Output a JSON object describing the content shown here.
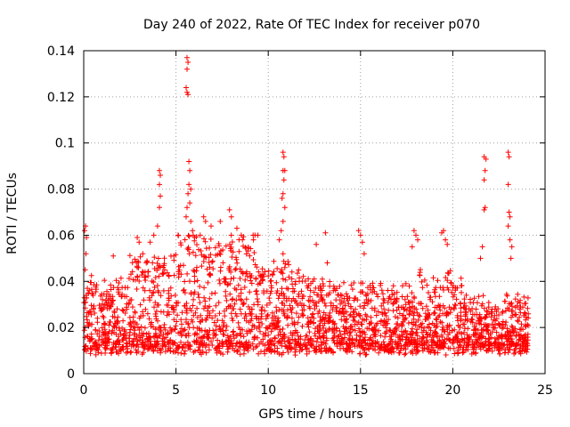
{
  "chart_data": {
    "type": "scatter",
    "title": "Day 240 of 2022, Rate Of TEC Index for receiver p070",
    "xlabel": "GPS time / hours",
    "ylabel": "ROTI / TECUs",
    "xlim": [
      0,
      25
    ],
    "ylim": [
      0,
      0.14
    ],
    "xticks": [
      0,
      5,
      10,
      15,
      20,
      25
    ],
    "xtick_labels": [
      "0",
      "5",
      "10",
      "15",
      "20",
      "25"
    ],
    "yticks": [
      0,
      0.02,
      0.04,
      0.06,
      0.08,
      0.1,
      0.12,
      0.14
    ],
    "ytick_labels": [
      "0",
      "0.02",
      "0.04",
      "0.06",
      "0.08",
      "0.1",
      "0.12",
      "0.14"
    ],
    "grid": true,
    "marker": "+",
    "color": "#ff0000",
    "series": [
      {
        "name": "ROTI",
        "points": [
          [
            0.05,
            0.062
          ],
          [
            0.1,
            0.064
          ],
          [
            0.15,
            0.059
          ],
          [
            0.12,
            0.052
          ],
          [
            0.08,
            0.045
          ],
          [
            0.2,
            0.037
          ],
          [
            0.3,
            0.036
          ],
          [
            0.25,
            0.035
          ],
          [
            1.6,
            0.051
          ],
          [
            2.9,
            0.059
          ],
          [
            3.0,
            0.057
          ],
          [
            3.2,
            0.052
          ],
          [
            3.6,
            0.057
          ],
          [
            3.8,
            0.06
          ],
          [
            4.1,
            0.088
          ],
          [
            4.15,
            0.086
          ],
          [
            4.1,
            0.082
          ],
          [
            4.15,
            0.077
          ],
          [
            4.1,
            0.072
          ],
          [
            4.0,
            0.064
          ],
          [
            5.6,
            0.137
          ],
          [
            5.65,
            0.135
          ],
          [
            5.6,
            0.132
          ],
          [
            5.55,
            0.124
          ],
          [
            5.6,
            0.122
          ],
          [
            5.65,
            0.121
          ],
          [
            5.7,
            0.092
          ],
          [
            5.75,
            0.088
          ],
          [
            5.7,
            0.082
          ],
          [
            5.8,
            0.08
          ],
          [
            5.65,
            0.078
          ],
          [
            5.75,
            0.074
          ],
          [
            5.6,
            0.072
          ],
          [
            5.55,
            0.068
          ],
          [
            5.8,
            0.066
          ],
          [
            5.9,
            0.062
          ],
          [
            6.5,
            0.068
          ],
          [
            6.6,
            0.066
          ],
          [
            6.9,
            0.064
          ],
          [
            7.4,
            0.066
          ],
          [
            7.9,
            0.071
          ],
          [
            8.0,
            0.068
          ],
          [
            8.3,
            0.063
          ],
          [
            8.6,
            0.058
          ],
          [
            9.2,
            0.058
          ],
          [
            10.8,
            0.096
          ],
          [
            10.85,
            0.094
          ],
          [
            10.8,
            0.088
          ],
          [
            10.9,
            0.088
          ],
          [
            10.85,
            0.084
          ],
          [
            10.8,
            0.078
          ],
          [
            10.75,
            0.076
          ],
          [
            10.9,
            0.072
          ],
          [
            10.8,
            0.066
          ],
          [
            10.7,
            0.062
          ],
          [
            10.6,
            0.058
          ],
          [
            10.8,
            0.052
          ],
          [
            10.9,
            0.046
          ],
          [
            12.6,
            0.056
          ],
          [
            13.1,
            0.061
          ],
          [
            13.2,
            0.048
          ],
          [
            14.9,
            0.062
          ],
          [
            15.0,
            0.06
          ],
          [
            15.1,
            0.057
          ],
          [
            15.2,
            0.052
          ],
          [
            17.9,
            0.062
          ],
          [
            18.0,
            0.06
          ],
          [
            18.1,
            0.058
          ],
          [
            17.8,
            0.055
          ],
          [
            19.4,
            0.061
          ],
          [
            19.5,
            0.062
          ],
          [
            19.6,
            0.058
          ],
          [
            19.7,
            0.056
          ],
          [
            21.7,
            0.094
          ],
          [
            21.8,
            0.093
          ],
          [
            21.75,
            0.088
          ],
          [
            21.7,
            0.084
          ],
          [
            21.75,
            0.072
          ],
          [
            21.7,
            0.071
          ],
          [
            21.6,
            0.055
          ],
          [
            21.5,
            0.05
          ],
          [
            23.0,
            0.096
          ],
          [
            23.05,
            0.094
          ],
          [
            23.0,
            0.082
          ],
          [
            23.05,
            0.07
          ],
          [
            23.1,
            0.068
          ],
          [
            23.0,
            0.064
          ],
          [
            23.1,
            0.058
          ],
          [
            23.2,
            0.055
          ],
          [
            23.15,
            0.05
          ]
        ]
      }
    ]
  }
}
